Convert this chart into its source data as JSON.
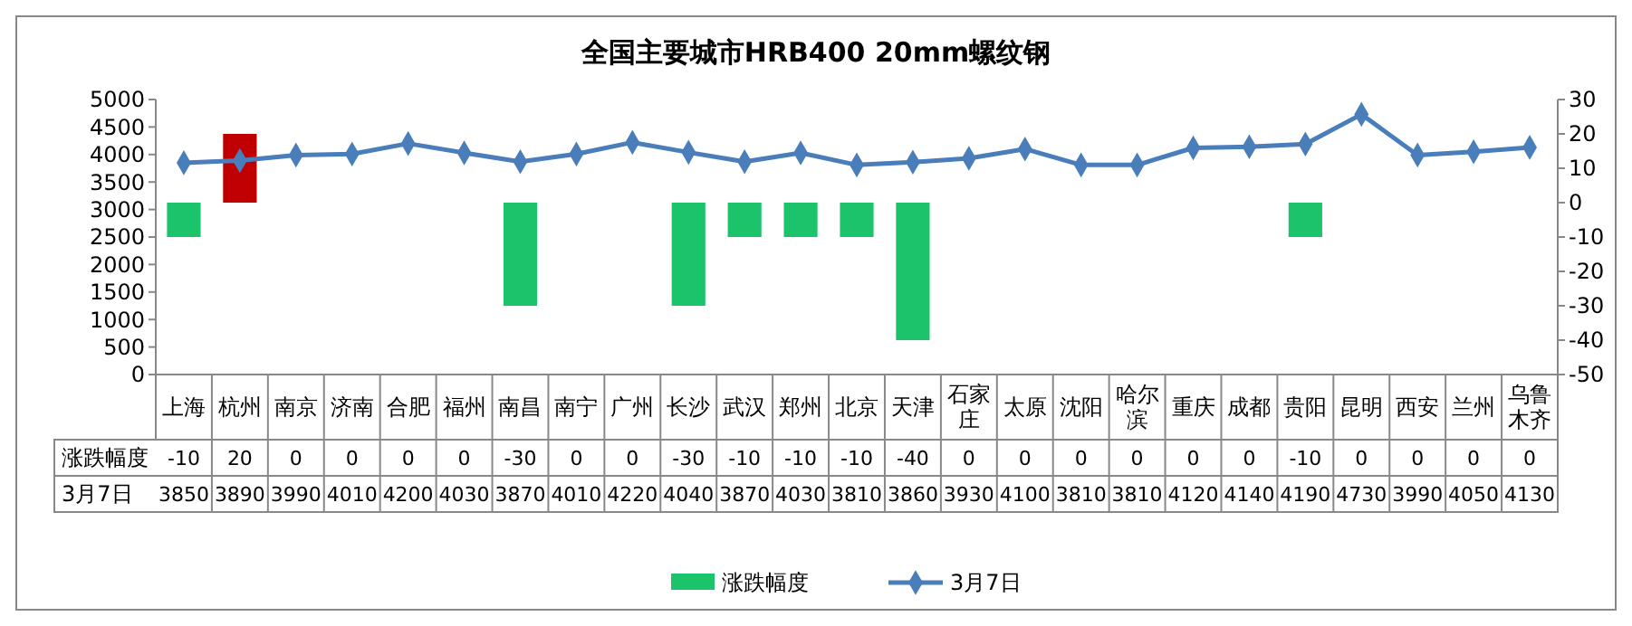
{
  "chart_data": {
    "type": "bar",
    "title": "全国主要城市HRB400 20mm螺纹钢",
    "categories": [
      "上海",
      "杭州",
      "南京",
      "济南",
      "合肥",
      "福州",
      "南昌",
      "南宁",
      "广州",
      "长沙",
      "武汉",
      "郑州",
      "北京",
      "天津",
      "石家庄",
      "太原",
      "沈阳",
      "哈尔滨",
      "重庆",
      "成都",
      "贵阳",
      "昆明",
      "西安",
      "兰州",
      "乌鲁木齐"
    ],
    "series": [
      {
        "name": "涨跌幅度",
        "axis": "y2",
        "color": "#1bc46a",
        "colors": [
          "#1bc46a",
          "#c00000",
          "#1bc46a",
          "#1bc46a",
          "#1bc46a",
          "#1bc46a",
          "#1bc46a",
          "#1bc46a",
          "#1bc46a",
          "#1bc46a",
          "#1bc46a",
          "#1bc46a",
          "#1bc46a",
          "#1bc46a",
          "#1bc46a",
          "#1bc46a",
          "#1bc46a",
          "#1bc46a",
          "#1bc46a",
          "#1bc46a",
          "#1bc46a",
          "#1bc46a",
          "#1bc46a",
          "#1bc46a",
          "#1bc46a"
        ],
        "values": [
          -10,
          20,
          0,
          0,
          0,
          0,
          -30,
          0,
          0,
          -30,
          -10,
          -10,
          -10,
          -40,
          0,
          0,
          0,
          0,
          0,
          0,
          -10,
          0,
          0,
          0,
          0
        ]
      },
      {
        "name": "3月7日",
        "type": "line",
        "color": "#4a7ebb",
        "values": [
          3850,
          3890,
          3990,
          4010,
          4200,
          4030,
          3870,
          4010,
          4220,
          4040,
          3870,
          4030,
          3810,
          3860,
          3930,
          4100,
          3810,
          3810,
          4120,
          4140,
          4190,
          4730,
          3990,
          4050,
          4130
        ]
      }
    ],
    "ylim": [
      0,
      5000
    ],
    "yticks": [
      0,
      500,
      1000,
      1500,
      2000,
      2500,
      3000,
      3500,
      4000,
      4500,
      5000
    ],
    "y2lim": [
      -50,
      30
    ],
    "y2ticks": [
      -50,
      -40,
      -30,
      -20,
      -10,
      0,
      10,
      20,
      30
    ],
    "data_labels": true,
    "legend": "bottom",
    "marker": "diamond",
    "grid": false
  }
}
